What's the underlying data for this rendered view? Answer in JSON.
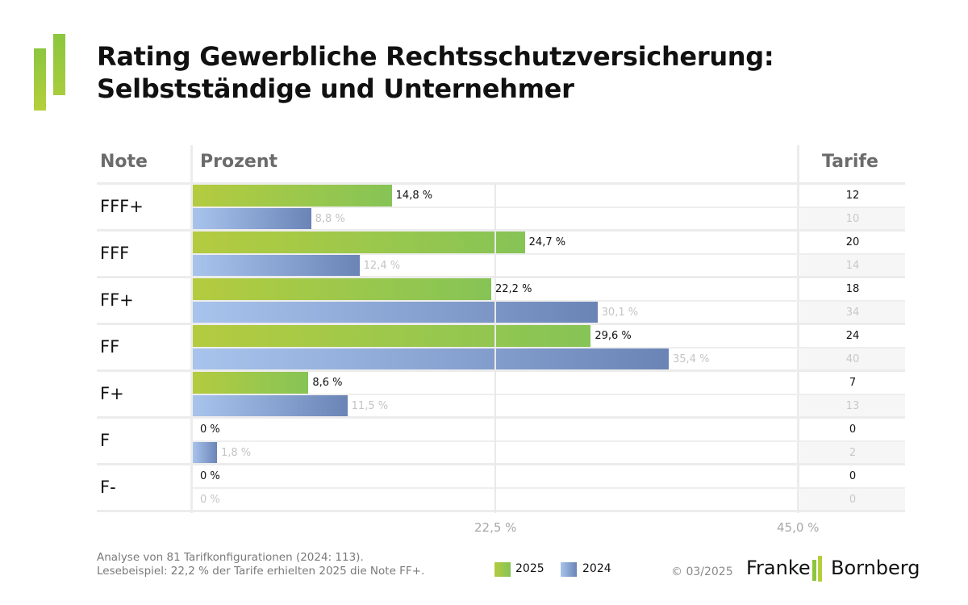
{
  "title": {
    "line1": "Rating Gewerbliche Rechtsschutzversicherung:",
    "line2": "Selbstständige und Unternehmer"
  },
  "columns": {
    "note": "Note",
    "prozent": "Prozent",
    "tarife": "Tarife"
  },
  "colors": {
    "series_2025": "#9dc84b",
    "series_2024": "#8ea8d6",
    "logo_green": "#8cc63f"
  },
  "chart_data": {
    "type": "bar",
    "orientation": "horizontal",
    "title": "Rating Gewerbliche Rechtsschutzversicherung: Selbstständige und Unternehmer",
    "xlabel": "Prozent",
    "ylabel": "Note",
    "xlim": [
      0,
      45
    ],
    "x_ticks": [
      "22,5 %",
      "45,0 %"
    ],
    "x_tick_values": [
      22.5,
      45.0
    ],
    "grid": true,
    "legend": "bottom-center",
    "categories": [
      "FFF+",
      "FFF",
      "FF+",
      "FF",
      "F+",
      "F",
      "F-"
    ],
    "series": [
      {
        "name": "2025",
        "values": [
          14.8,
          24.7,
          22.2,
          29.6,
          8.6,
          0,
          0
        ],
        "labels": [
          "14,8 %",
          "24,7 %",
          "22,2 %",
          "29,6 %",
          "8,6 %",
          "0 %",
          "0 %"
        ],
        "tarife": [
          "12",
          "20",
          "18",
          "24",
          "7",
          "0",
          "0"
        ]
      },
      {
        "name": "2024",
        "values": [
          8.8,
          12.4,
          30.1,
          35.4,
          11.5,
          1.8,
          0
        ],
        "labels": [
          "8,8 %",
          "12,4 %",
          "30,1 %",
          "35,4 %",
          "11,5 %",
          "1,8 %",
          "0 %"
        ],
        "tarife": [
          "10",
          "14",
          "34",
          "40",
          "13",
          "2",
          "0"
        ]
      }
    ]
  },
  "footer": {
    "note_line1": "Analyse von 81 Tarifkonfigurationen (2024: 113).",
    "note_line2": "Lesebeispiel: 22,2 % der Tarife erhielten 2025 die Note FF+.",
    "legend_2025": "2025",
    "legend_2024": "2024",
    "copyright": "© 03/2025",
    "brand_left": "Franke",
    "brand_right": "Bornberg"
  }
}
